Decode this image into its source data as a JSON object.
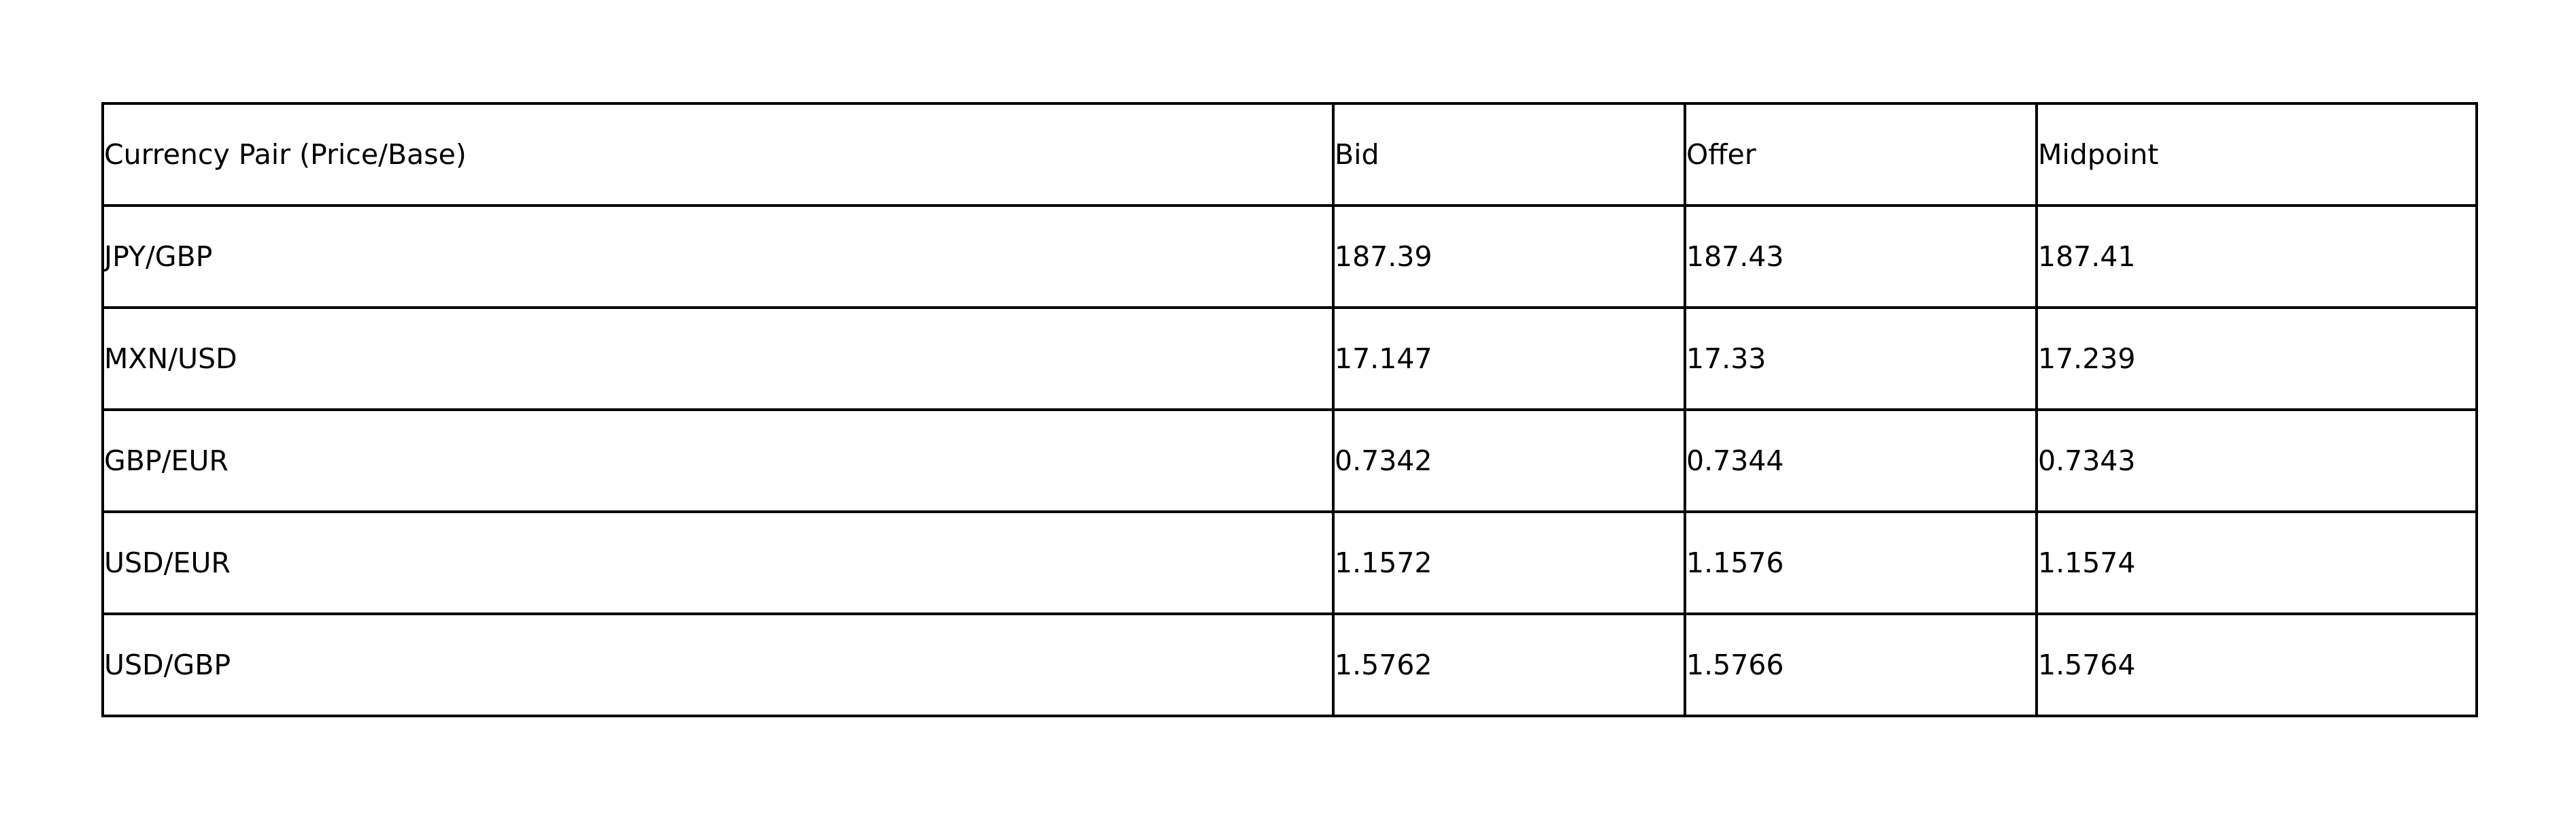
{
  "table": {
    "headers": [
      "Currency Pair (Price/Base)",
      "Bid",
      "Offer",
      "Midpoint"
    ],
    "rows": [
      [
        "JPY/GBP",
        "187.39",
        "187.43",
        "187.41"
      ],
      [
        "MXN/USD",
        "17.147",
        "17.33",
        "17.239"
      ],
      [
        "GBP/EUR",
        "0.7342",
        "0.7344",
        "0.7343"
      ],
      [
        "USD/EUR",
        "1.1572",
        "1.1576",
        "1.1574"
      ],
      [
        "USD/GBP",
        "1.5762",
        "1.5766",
        "1.5764"
      ]
    ]
  }
}
